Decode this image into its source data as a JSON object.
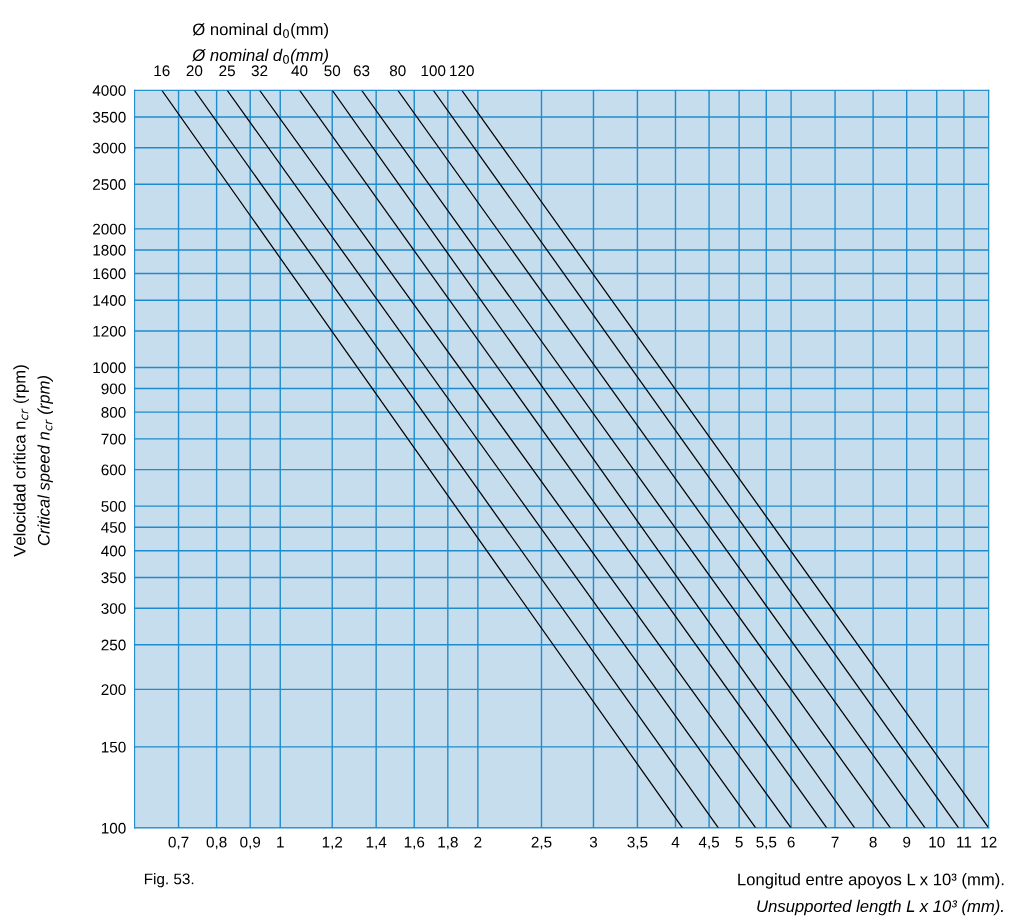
{
  "chart_data": {
    "type": "line",
    "title": "Ø nominal d$_{0}$(mm)\nØ nominal d$_{0}$(mm)",
    "xlabel": "Longitud entre apoyos L x 10³ (mm).\nUnsupported length L x 10³ (mm).",
    "ylabel": "Velocidad crítica n$_{cr}$ (rpm)\nCritical speed n$_{cr}$ (rpm)",
    "annotations": [
      "Fig. 53."
    ],
    "log": "xy",
    "grid": true,
    "xlim": [
      0.6,
      12
    ],
    "ylim": [
      100,
      4000
    ],
    "xticks": [
      {
        "value": 0.7,
        "label": "0,7"
      },
      {
        "value": 0.8,
        "label": "0,8"
      },
      {
        "value": 0.9,
        "label": "0,9"
      },
      1,
      {
        "value": 1.2,
        "label": "1,2"
      },
      {
        "value": 1.4,
        "label": "1,4"
      },
      {
        "value": 1.6,
        "label": "1,6"
      },
      {
        "value": 1.8,
        "label": "1,8"
      },
      2,
      {
        "value": 2.5,
        "label": "2,5"
      },
      3,
      {
        "value": 3.5,
        "label": "3,5"
      },
      4,
      {
        "value": 4.5,
        "label": "4,5"
      },
      5,
      {
        "value": 5.5,
        "label": "5,5"
      },
      6,
      7,
      8,
      9,
      10,
      11,
      12
    ],
    "yticks": [
      100,
      150,
      200,
      250,
      300,
      350,
      400,
      450,
      500,
      600,
      700,
      800,
      900,
      1000,
      1200,
      1400,
      1600,
      1800,
      2000,
      2500,
      3000,
      3500,
      4000
    ],
    "series": [
      {
        "name": "16",
        "color": "#000000",
        "x": [
          0.66,
          4.1
        ],
        "values": [
          4000,
          100
        ]
      },
      {
        "name": "20",
        "color": "#000000",
        "x": [
          0.74,
          4.65
        ],
        "values": [
          4000,
          100
        ]
      },
      {
        "name": "25",
        "color": "#000000",
        "x": [
          0.83,
          5.3
        ],
        "values": [
          4000,
          100
        ]
      },
      {
        "name": "32",
        "color": "#000000",
        "x": [
          0.93,
          6.0
        ],
        "values": [
          4000,
          100
        ]
      },
      {
        "name": "40",
        "color": "#000000",
        "x": [
          1.07,
          6.8
        ],
        "values": [
          4000,
          100
        ]
      },
      {
        "name": "50",
        "color": "#000000",
        "x": [
          1.2,
          7.5
        ],
        "values": [
          4000,
          100
        ]
      },
      {
        "name": "63",
        "color": "#000000",
        "x": [
          1.33,
          8.5
        ],
        "values": [
          4000,
          100
        ]
      },
      {
        "name": "80",
        "color": "#000000",
        "x": [
          1.51,
          9.6
        ],
        "values": [
          4000,
          100
        ]
      },
      {
        "name": "100",
        "color": "#000000",
        "x": [
          1.71,
          10.8
        ],
        "values": [
          4000,
          100
        ]
      },
      {
        "name": "120",
        "color": "#000000",
        "x": [
          1.89,
          12
        ],
        "values": [
          4000,
          100
        ]
      }
    ]
  }
}
